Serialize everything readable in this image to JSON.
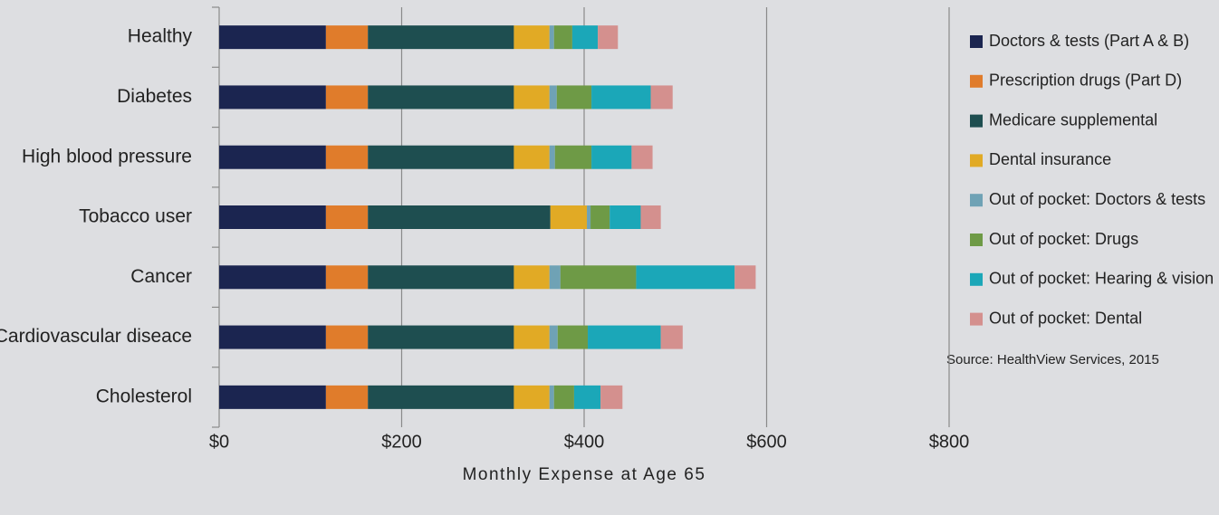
{
  "chart_data": {
    "type": "stacked-bar-horizontal",
    "x_label": "Monthly Expense at Age 65",
    "source": "Source: HealthView Services, 2015",
    "categories": [
      "Healthy",
      "Diabetes",
      "High blood pressure",
      "Tobacco user",
      "Cancer",
      "Cardiovascular diseace",
      "Cholesterol"
    ],
    "series": [
      {
        "name": "Doctors & tests (Part A & B)",
        "color": "#1b2550",
        "values": [
          117,
          117,
          117,
          117,
          117,
          117,
          117
        ]
      },
      {
        "name": "Prescription drugs (Part D)",
        "color": "#e07c2b",
        "values": [
          46,
          46,
          46,
          46,
          46,
          46,
          46
        ]
      },
      {
        "name": "Medicare supplemental",
        "color": "#1e4e50",
        "values": [
          160,
          160,
          160,
          200,
          160,
          160,
          160
        ]
      },
      {
        "name": "Dental insurance",
        "color": "#e1aa25",
        "values": [
          39,
          39,
          39,
          40,
          39,
          39,
          39
        ]
      },
      {
        "name": "Out of pocket: Doctors & tests",
        "color": "#6fa2b5",
        "values": [
          5,
          8,
          6,
          4,
          12,
          9,
          5
        ]
      },
      {
        "name": "Out of pocket: Drugs",
        "color": "#6e9a46",
        "values": [
          20,
          38,
          40,
          21,
          83,
          33,
          22
        ]
      },
      {
        "name": "Out of pocket: Hearing & vision",
        "color": "#1ba7b8",
        "values": [
          28,
          65,
          44,
          34,
          108,
          80,
          29
        ]
      },
      {
        "name": "Out of pocket: Dental",
        "color": "#d4908e",
        "values": [
          22,
          24,
          23,
          22,
          23,
          24,
          24
        ]
      }
    ],
    "xlim": [
      0,
      800
    ],
    "xticks": [
      {
        "value": 0,
        "label": "$0"
      },
      {
        "value": 200,
        "label": "$200"
      },
      {
        "value": 400,
        "label": "$400"
      },
      {
        "value": 600,
        "label": "$600"
      },
      {
        "value": 800,
        "label": "$800"
      }
    ],
    "grid": true,
    "legend": "right"
  }
}
